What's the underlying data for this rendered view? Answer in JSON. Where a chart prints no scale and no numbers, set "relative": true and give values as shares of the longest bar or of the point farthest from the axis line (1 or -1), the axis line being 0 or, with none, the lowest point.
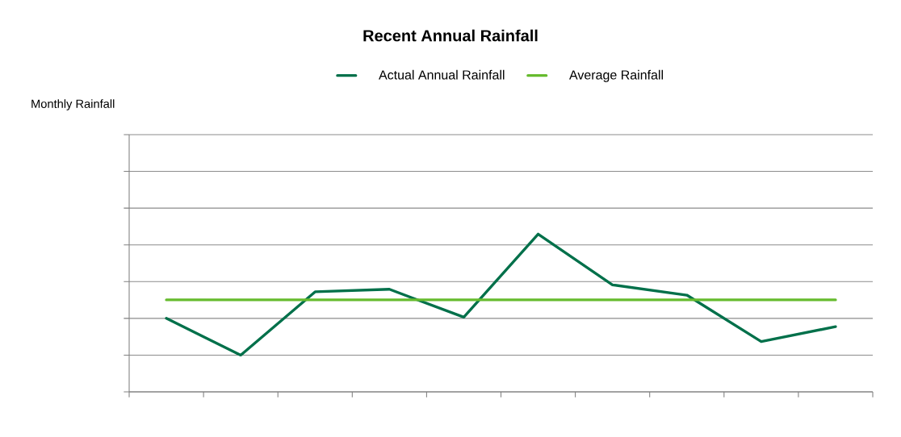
{
  "chart_data": {
    "type": "line",
    "title": "Recent Annual Rainfall",
    "annotations": [
      "Monthly Rainfall"
    ],
    "relative": true,
    "categories": [
      null,
      null,
      null,
      null,
      null,
      null,
      null,
      null,
      null,
      null
    ],
    "series": [
      {
        "name": "Actual Annual Rainfall",
        "color": "#00704a",
        "values": [
          0.466,
          0.233,
          0.634,
          0.65,
          0.473,
          1,
          0.678,
          0.613,
          0.319,
          0.413
        ]
      },
      {
        "name": "Average Rainfall",
        "color": "#66bb2e",
        "values": [
          0.583,
          0.583,
          0.583,
          0.583,
          0.583,
          0.583,
          0.583,
          0.583,
          0.583,
          0.583
        ]
      }
    ],
    "grid": "y",
    "legend": "top",
    "marker": "none",
    "line_style": "solid"
  }
}
